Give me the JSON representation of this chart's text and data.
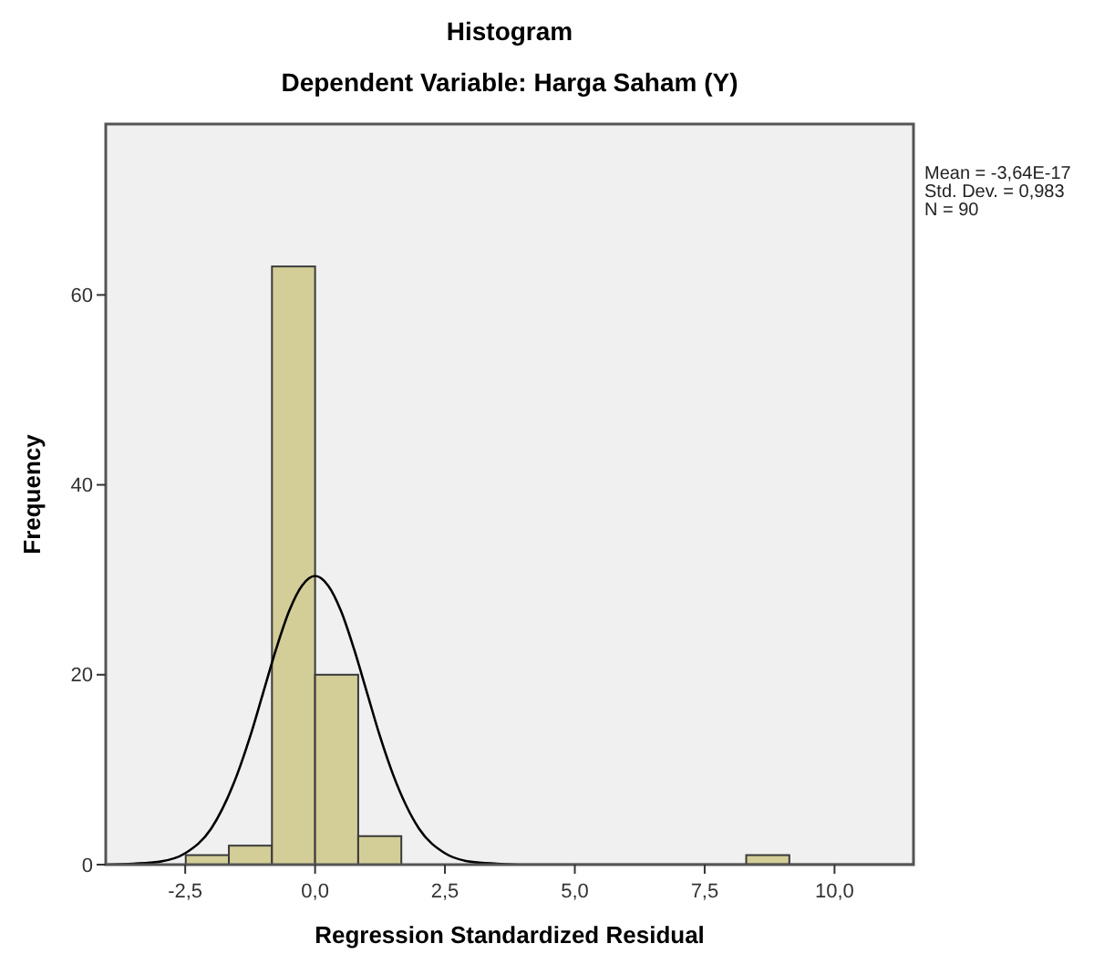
{
  "chart_data": {
    "type": "histogram",
    "title": "Histogram",
    "subtitle": "Dependent Variable: Harga Saham (Y)",
    "xlabel": "Regression Standardized Residual",
    "ylabel": "Frequency",
    "annotations": [
      "Mean = -3,64E-17",
      "Std. Dev. = 0,983",
      "N = 90"
    ],
    "xlim": [
      -4.03,
      11.52
    ],
    "ylim": [
      0,
      78
    ],
    "xticks": [
      {
        "value": -2.5,
        "label": "-2,5"
      },
      {
        "value": 0,
        "label": "0,0"
      },
      {
        "value": 2.5,
        "label": "2,5"
      },
      {
        "value": 5,
        "label": "5,0"
      },
      {
        "value": 7.5,
        "label": "7,5"
      },
      {
        "value": 10,
        "label": "10,0"
      }
    ],
    "yticks": [
      0,
      20,
      40,
      60
    ],
    "grid": false,
    "series": [
      {
        "color": "#d3ce97",
        "bins": [
          -2.49,
          -1.66,
          -0.83,
          0,
          0.83,
          1.66,
          2.49,
          3.32,
          4.15,
          4.98,
          5.81,
          6.64,
          7.47,
          8.3,
          9.13
        ],
        "values": [
          1,
          2,
          63,
          20,
          3,
          0,
          0,
          0,
          0,
          0,
          0,
          0,
          0,
          1
        ]
      },
      {
        "type": "line",
        "color": "#000000",
        "x": [
          -4,
          -3.5,
          -3,
          -2.5,
          -2,
          -1.5,
          -1.25,
          -1,
          -0.75,
          -0.5,
          -0.25,
          0,
          0.25,
          0.5,
          0.75,
          1,
          1.25,
          1.5,
          2,
          2.5,
          3,
          3.5,
          4,
          5,
          7,
          9,
          11.5
        ],
        "values": [
          0,
          0.1,
          0.3,
          1.2,
          3.8,
          9.5,
          13.5,
          18.1,
          22.7,
          26.7,
          29.4,
          30.4,
          29.4,
          26.7,
          22.7,
          18.1,
          13.5,
          9.5,
          3.8,
          1.2,
          0.3,
          0.1,
          0,
          0,
          0,
          0,
          0
        ]
      }
    ]
  }
}
